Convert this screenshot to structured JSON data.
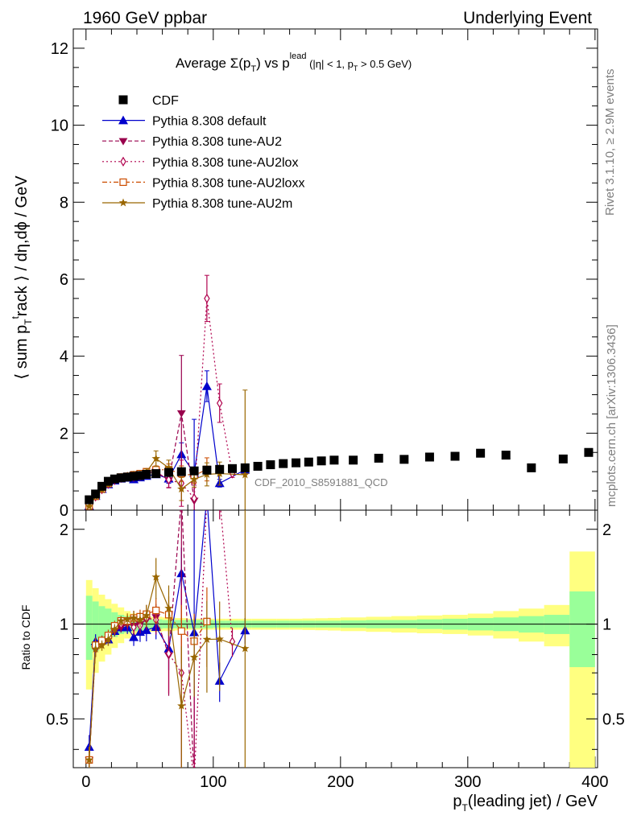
{
  "header": {
    "left": "1960 GeV ppbar",
    "right": "Underlying Event"
  },
  "side": {
    "rivet": "Rivet 3.1.10, ≥ 2.9M events",
    "mcplots": "mcplots.cern.ch [arXiv:1306.3436]"
  },
  "chart_data": {
    "type": "scatter",
    "title": "Average Σ(p_T) vs p_T^lead (|η| < 1, p_T > 0.5 GeV)",
    "title_parts": {
      "pre": "Average ",
      "sigma": "Σ(p",
      "sub_t": "T",
      "mid": ") vs p",
      "sup_lead": "lead",
      "post": " (|η| < 1, p",
      "end": " > 0.5 GeV)"
    },
    "ylabel": "⟨ sum p_T^track ⟩ / dη,dϕ / GeV",
    "ylabel_parts": {
      "a": "⟨ sum p",
      "sub": "T",
      "sup": "t",
      "b": "rack ⟩ / dη,dϕ / GeV"
    },
    "xlabel": "p_T(leading jet) / GeV",
    "xlabel_parts": {
      "a": "p",
      "sub": "T",
      "b": "(leading jet) / GeV"
    },
    "ratio_ylabel": "Ratio to CDF",
    "watermark": "CDF_2010_S8591881_QCD",
    "xlim": [
      -10,
      402
    ],
    "ylim": [
      0,
      12.5
    ],
    "ratio_ylim": [
      0.35,
      2.3
    ],
    "x_ticks": [
      "0",
      "100",
      "200",
      "300",
      "400"
    ],
    "y_ticks": [
      "0",
      "2",
      "4",
      "6",
      "8",
      "10",
      "12"
    ],
    "ratio_ticks": [
      "0.5",
      "1",
      "2"
    ],
    "legend_position": "top-left",
    "data": {
      "name": "CDF",
      "color": "#000000",
      "x": [
        2.5,
        7.5,
        12.5,
        17.5,
        22.5,
        27.5,
        32.5,
        37.5,
        42.5,
        47.5,
        55,
        65,
        75,
        85,
        95,
        105,
        115,
        125,
        135,
        145,
        155,
        165,
        175,
        185,
        195,
        210,
        230,
        250,
        270,
        290,
        310,
        330,
        350,
        375,
        395
      ],
      "y": [
        0.27,
        0.42,
        0.62,
        0.75,
        0.81,
        0.84,
        0.86,
        0.88,
        0.9,
        0.93,
        0.95,
        0.98,
        1.0,
        1.02,
        1.04,
        1.06,
        1.08,
        1.1,
        1.14,
        1.18,
        1.21,
        1.23,
        1.25,
        1.28,
        1.3,
        1.3,
        1.35,
        1.32,
        1.38,
        1.4,
        1.48,
        1.43,
        1.1,
        1.33,
        1.5
      ]
    },
    "band": [
      {
        "x0": 0,
        "x1": 5,
        "inner": 0.23,
        "outer": 0.38
      },
      {
        "x0": 5,
        "x1": 10,
        "inner": 0.18,
        "outer": 0.3
      },
      {
        "x0": 10,
        "x1": 15,
        "inner": 0.14,
        "outer": 0.24
      },
      {
        "x0": 15,
        "x1": 20,
        "inner": 0.12,
        "outer": 0.2
      },
      {
        "x0": 20,
        "x1": 25,
        "inner": 0.09,
        "outer": 0.16
      },
      {
        "x0": 25,
        "x1": 30,
        "inner": 0.07,
        "outer": 0.13
      },
      {
        "x0": 30,
        "x1": 35,
        "inner": 0.06,
        "outer": 0.1
      },
      {
        "x0": 35,
        "x1": 40,
        "inner": 0.05,
        "outer": 0.08
      },
      {
        "x0": 40,
        "x1": 45,
        "inner": 0.045,
        "outer": 0.07
      },
      {
        "x0": 45,
        "x1": 50,
        "inner": 0.04,
        "outer": 0.06
      },
      {
        "x0": 50,
        "x1": 60,
        "inner": 0.035,
        "outer": 0.055
      },
      {
        "x0": 60,
        "x1": 70,
        "inner": 0.03,
        "outer": 0.05
      },
      {
        "x0": 70,
        "x1": 80,
        "inner": 0.03,
        "outer": 0.045
      },
      {
        "x0": 80,
        "x1": 90,
        "inner": 0.03,
        "outer": 0.04
      },
      {
        "x0": 90,
        "x1": 100,
        "inner": 0.03,
        "outer": 0.04
      },
      {
        "x0": 100,
        "x1": 110,
        "inner": 0.025,
        "outer": 0.04
      },
      {
        "x0": 110,
        "x1": 120,
        "inner": 0.025,
        "outer": 0.04
      },
      {
        "x0": 120,
        "x1": 130,
        "inner": 0.025,
        "outer": 0.04
      },
      {
        "x0": 130,
        "x1": 140,
        "inner": 0.025,
        "outer": 0.04
      },
      {
        "x0": 140,
        "x1": 150,
        "inner": 0.025,
        "outer": 0.04
      },
      {
        "x0": 150,
        "x1": 160,
        "inner": 0.025,
        "outer": 0.04
      },
      {
        "x0": 160,
        "x1": 170,
        "inner": 0.025,
        "outer": 0.04
      },
      {
        "x0": 170,
        "x1": 180,
        "inner": 0.025,
        "outer": 0.042
      },
      {
        "x0": 180,
        "x1": 190,
        "inner": 0.025,
        "outer": 0.044
      },
      {
        "x0": 190,
        "x1": 200,
        "inner": 0.025,
        "outer": 0.046
      },
      {
        "x0": 200,
        "x1": 220,
        "inner": 0.027,
        "outer": 0.05
      },
      {
        "x0": 220,
        "x1": 240,
        "inner": 0.03,
        "outer": 0.055
      },
      {
        "x0": 240,
        "x1": 260,
        "inner": 0.03,
        "outer": 0.06
      },
      {
        "x0": 260,
        "x1": 280,
        "inner": 0.035,
        "outer": 0.065
      },
      {
        "x0": 280,
        "x1": 300,
        "inner": 0.04,
        "outer": 0.07
      },
      {
        "x0": 300,
        "x1": 320,
        "inner": 0.045,
        "outer": 0.08
      },
      {
        "x0": 320,
        "x1": 340,
        "inner": 0.05,
        "outer": 0.1
      },
      {
        "x0": 340,
        "x1": 360,
        "inner": 0.06,
        "outer": 0.12
      },
      {
        "x0": 360,
        "x1": 380,
        "inner": 0.07,
        "outer": 0.15
      },
      {
        "x0": 380,
        "x1": 400,
        "inner": 0.27,
        "outer": 0.7
      }
    ],
    "series": [
      {
        "name": "Pythia 8.308 default",
        "color": "#0000cc",
        "marker": "triangle-up",
        "dash": "",
        "x": [
          2.5,
          7.5,
          12.5,
          17.5,
          22.5,
          27.5,
          32.5,
          37.5,
          42.5,
          47.5,
          55,
          65,
          75,
          85,
          95,
          105,
          125
        ],
        "y": [
          0.11,
          0.37,
          0.55,
          0.67,
          0.77,
          0.82,
          0.84,
          0.8,
          0.85,
          0.89,
          0.93,
          0.82,
          1.45,
          0.96,
          3.22,
          0.7,
          1.05
        ],
        "err": [
          0.01,
          0.02,
          0.02,
          0.03,
          0.03,
          0.03,
          0.04,
          0.05,
          0.06,
          0.07,
          0.08,
          0.12,
          0.3,
          1.4,
          0.4,
          0.1,
          0.1
        ]
      },
      {
        "name": "Pythia 8.308 tune-AU2",
        "color": "#99004d",
        "marker": "triangle-down",
        "dash": "5,3",
        "x": [
          2.5,
          7.5,
          12.5,
          17.5,
          22.5,
          27.5,
          32.5,
          37.5,
          42.5,
          47.5,
          55,
          65,
          75,
          85
        ],
        "y": [
          0.1,
          0.35,
          0.54,
          0.67,
          0.77,
          0.82,
          0.86,
          0.87,
          0.9,
          0.96,
          1.0,
          0.78,
          2.52,
          0.25
        ],
        "err": [
          0.01,
          0.02,
          0.02,
          0.03,
          0.03,
          0.03,
          0.04,
          0.05,
          0.05,
          0.07,
          0.1,
          0.2,
          1.5,
          0.4
        ]
      },
      {
        "name": "Pythia 8.308 tune-AU2lox",
        "color": "#b0004d",
        "marker": "diamond-open",
        "dash": "2,3",
        "x": [
          2.5,
          7.5,
          12.5,
          17.5,
          22.5,
          27.5,
          32.5,
          37.5,
          42.5,
          47.5,
          55,
          65,
          75,
          85,
          95,
          105,
          115
        ],
        "y": [
          0.1,
          0.35,
          0.54,
          0.68,
          0.78,
          0.84,
          0.87,
          0.86,
          0.89,
          0.97,
          0.98,
          0.79,
          0.7,
          0.31,
          5.5,
          2.78,
          0.95
        ],
        "err": [
          0.01,
          0.02,
          0.02,
          0.03,
          0.03,
          0.03,
          0.04,
          0.05,
          0.05,
          0.07,
          0.1,
          0.2,
          0.6,
          0.4,
          0.6,
          0.5,
          0.1
        ]
      },
      {
        "name": "Pythia 8.308 tune-AU2loxx",
        "color": "#cc4c00",
        "marker": "square-open",
        "dash": "6,3,2,3",
        "x": [
          2.5,
          7.5,
          12.5,
          17.5,
          22.5,
          27.5,
          32.5,
          37.5,
          42.5,
          47.5,
          55,
          65,
          75,
          85,
          95
        ],
        "y": [
          0.1,
          0.36,
          0.55,
          0.69,
          0.8,
          0.86,
          0.88,
          0.92,
          0.95,
          1.0,
          1.05,
          1.05,
          0.95,
          0.9,
          1.06
        ],
        "err": [
          0.01,
          0.02,
          0.02,
          0.03,
          0.03,
          0.03,
          0.04,
          0.05,
          0.05,
          0.07,
          0.1,
          0.15,
          0.2,
          0.2,
          0.3
        ]
      },
      {
        "name": "Pythia 8.308 tune-AU2m",
        "color": "#996600",
        "marker": "star",
        "dash": "",
        "x": [
          2.5,
          7.5,
          12.5,
          17.5,
          22.5,
          27.5,
          32.5,
          37.5,
          42.5,
          47.5,
          55,
          65,
          75,
          85,
          95,
          105,
          125
        ],
        "y": [
          0.1,
          0.35,
          0.53,
          0.67,
          0.78,
          0.86,
          0.89,
          0.92,
          0.93,
          0.99,
          1.34,
          1.1,
          0.55,
          0.8,
          0.93,
          0.95,
          0.92
        ],
        "err": [
          0.01,
          0.02,
          0.02,
          0.03,
          0.03,
          0.03,
          0.04,
          0.05,
          0.05,
          0.08,
          0.2,
          0.2,
          0.3,
          0.2,
          0.3,
          0.3,
          2.2
        ]
      }
    ]
  }
}
